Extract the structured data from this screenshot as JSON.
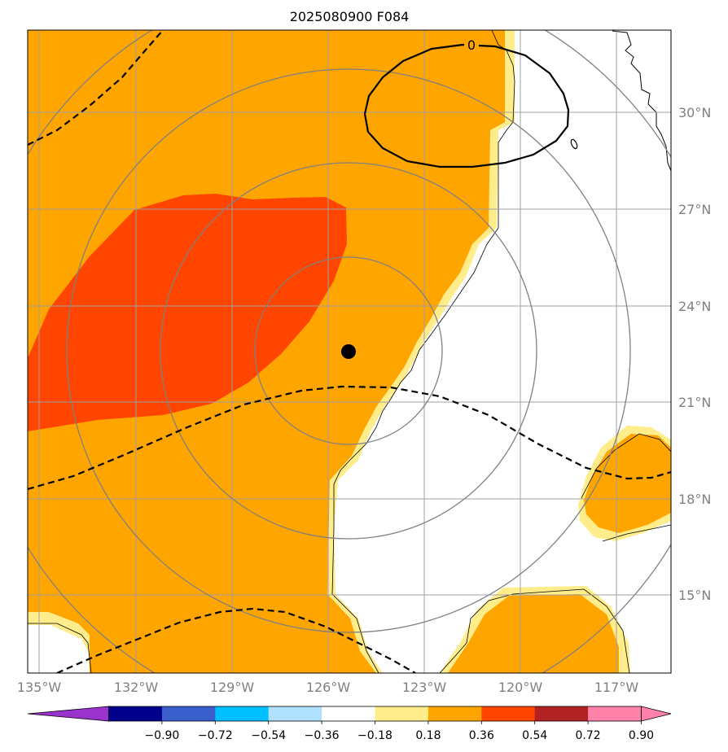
{
  "title": "2025080900 F084",
  "lon_labels": [
    "135°W",
    "132°W",
    "129°W",
    "126°W",
    "123°W",
    "120°W",
    "117°W"
  ],
  "lat_labels": [
    "30°N",
    "27°N",
    "24°N",
    "21°N",
    "18°N",
    "15°N"
  ],
  "contour_label": "0",
  "colorbar": {
    "ticks": [
      "−0.90",
      "−0.72",
      "−0.54",
      "−0.36",
      "−0.18",
      "0.18",
      "0.36",
      "0.54",
      "0.72",
      "0.90"
    ],
    "colors": [
      "#9a32cd",
      "#00008b",
      "#3a5fcd",
      "#00bfff",
      "#b0e2ff",
      "#ffffff",
      "#ffec8b",
      "#ffa500",
      "#ff4500",
      "#b22222",
      "#ff82ab",
      "#ff82ab"
    ]
  },
  "colors": {
    "fill_light": "#ffec8b",
    "fill_orange": "#ffa500",
    "fill_red": "#ff4500",
    "grid": "#808080",
    "center_marker": "#000000"
  }
}
